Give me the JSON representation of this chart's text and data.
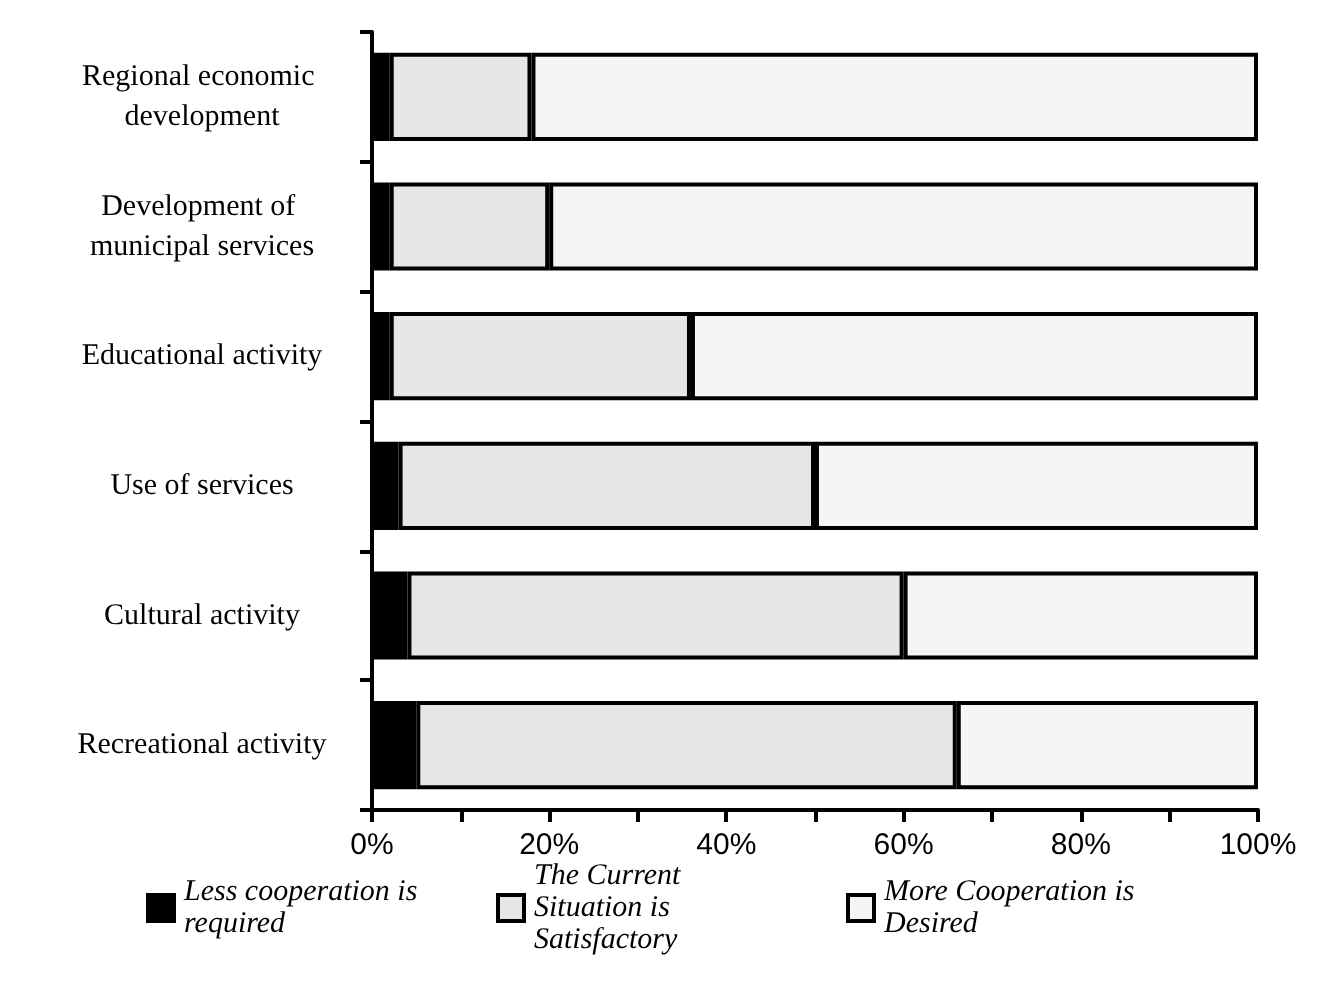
{
  "chart_data": {
    "type": "bar",
    "orientation": "horizontal",
    "stacked": true,
    "categories": [
      "Regional economic development",
      "Development of municipal services",
      "Educational activity",
      "Use of services",
      "Cultural activity",
      "Recreational activity"
    ],
    "series": [
      {
        "name": "Less cooperation is required",
        "color": "#000000",
        "values": [
          2,
          2,
          2,
          3,
          4,
          5
        ]
      },
      {
        "name": "The Current Situation is Satisfactory",
        "color": "#e6e6e6",
        "values": [
          16,
          18,
          34,
          47,
          56,
          61
        ]
      },
      {
        "name": "More Cooperation is Desired",
        "color": "#f5f5f5",
        "values": [
          82,
          80,
          64,
          50,
          40,
          34
        ]
      }
    ],
    "xlim": [
      0,
      100
    ],
    "xticks": [
      {
        "value": 0,
        "label": "0%"
      },
      {
        "value": 10,
        "label": null
      },
      {
        "value": 20,
        "label": "20%"
      },
      {
        "value": 30,
        "label": null
      },
      {
        "value": 40,
        "label": "40%"
      },
      {
        "value": 50,
        "label": null
      },
      {
        "value": 60,
        "label": "60%"
      },
      {
        "value": 70,
        "label": null
      },
      {
        "value": 80,
        "label": "80%"
      },
      {
        "value": 90,
        "label": null
      },
      {
        "value": 100,
        "label": "100%"
      }
    ],
    "grid": false,
    "legend": "bottom"
  }
}
